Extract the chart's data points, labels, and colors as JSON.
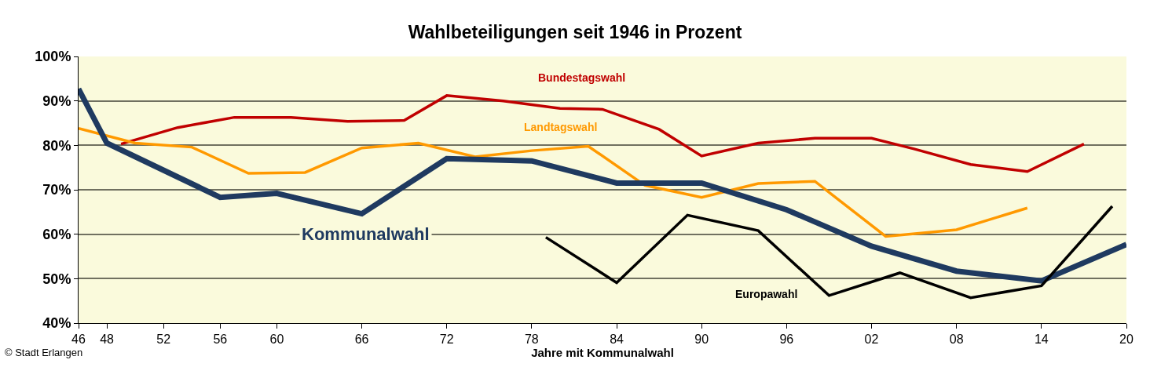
{
  "chart_data": {
    "type": "line",
    "title": "Wahlbeteiligungen seit 1946 in Prozent",
    "xlabel": "Jahre mit Kommunalwahl",
    "xlim": [
      1946,
      2020
    ],
    "xticks": [
      {
        "value": 1946,
        "label": "46"
      },
      {
        "value": 1948,
        "label": "48"
      },
      {
        "value": 1952,
        "label": "52"
      },
      {
        "value": 1956,
        "label": "56"
      },
      {
        "value": 1960,
        "label": "60"
      },
      {
        "value": 1966,
        "label": "66"
      },
      {
        "value": 1972,
        "label": "72"
      },
      {
        "value": 1978,
        "label": "78"
      },
      {
        "value": 1984,
        "label": "84"
      },
      {
        "value": 1990,
        "label": "90"
      },
      {
        "value": 1996,
        "label": "96"
      },
      {
        "value": 2002,
        "label": "02"
      },
      {
        "value": 2008,
        "label": "08"
      },
      {
        "value": 2014,
        "label": "14"
      },
      {
        "value": 2020,
        "label": "20"
      }
    ],
    "ylim": [
      40,
      100
    ],
    "yticks": [
      {
        "value": 40,
        "label": "40%"
      },
      {
        "value": 50,
        "label": "50%"
      },
      {
        "value": 60,
        "label": "60%"
      },
      {
        "value": 70,
        "label": "70%"
      },
      {
        "value": 80,
        "label": "80%"
      },
      {
        "value": 90,
        "label": "90%"
      },
      {
        "value": 100,
        "label": "100%"
      }
    ],
    "grid": "y",
    "legend": false,
    "marker": "none",
    "line_style": "solid",
    "series": [
      {
        "name": "Bundestagswahl",
        "color": "#c00000",
        "x": [
          1949,
          1953,
          1957,
          1961,
          1965,
          1969,
          1972,
          1976,
          1980,
          1983,
          1987,
          1990,
          1994,
          1998,
          2002,
          2005,
          2009,
          2013,
          2017
        ],
        "values": [
          80.3,
          84,
          86.3,
          86.3,
          85.4,
          85.6,
          91.2,
          90,
          88.3,
          88.1,
          83.6,
          77.6,
          80.5,
          81.6,
          81.6,
          79.2,
          75.7,
          74.1,
          80.3
        ]
      },
      {
        "name": "Landtagswahl",
        "color": "#ff9900",
        "x": [
          1946,
          1950,
          1954,
          1958,
          1962,
          1966,
          1970,
          1974,
          1978,
          1982,
          1986,
          1990,
          1994,
          1998,
          2003,
          2008,
          2013
        ],
        "values": [
          83.8,
          80.5,
          79.6,
          73.7,
          73.9,
          79.4,
          80.5,
          77.4,
          78.8,
          79.8,
          71,
          68.3,
          71.4,
          71.9,
          59.5,
          61,
          65.9
        ]
      },
      {
        "name": "Kommunalwahl",
        "color": "#1f3a60",
        "x": [
          1946,
          1948,
          1956,
          1960,
          1966,
          1972,
          1978,
          1984,
          1990,
          1996,
          2002,
          2008,
          2014,
          2020
        ],
        "values": [
          92.7,
          80.5,
          68.3,
          69.2,
          64.6,
          77,
          76.5,
          71.5,
          71.5,
          65.5,
          57.3,
          51.7,
          49.5,
          57.7
        ]
      },
      {
        "name": "Europawahl",
        "color": "#000000",
        "x": [
          1979,
          1984,
          1989,
          1994,
          1999,
          2004,
          2009,
          2014,
          2019
        ],
        "values": [
          59.3,
          49.1,
          64.3,
          60.8,
          46.2,
          51.3,
          45.7,
          48.4,
          66.3
        ]
      }
    ],
    "annotations": [
      "© Stadt Erlangen"
    ]
  }
}
